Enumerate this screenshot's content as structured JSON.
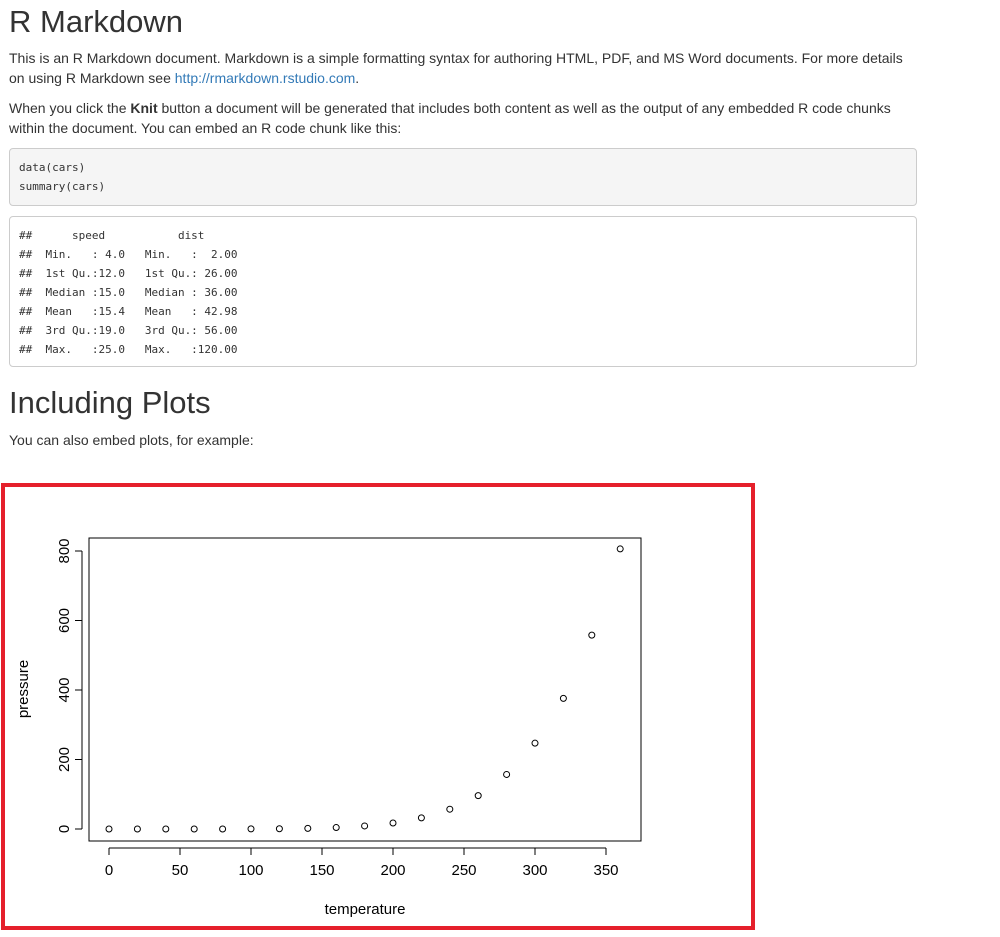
{
  "title": "R Markdown",
  "intro": {
    "text_before_link": "This is an R Markdown document. Markdown is a simple formatting syntax for authoring HTML, PDF, and MS Word documents. For more details on using R Markdown see ",
    "link_text": "http://rmarkdown.rstudio.com",
    "text_after_link": "."
  },
  "knit_para": {
    "text_before": "When you click the ",
    "bold": "Knit",
    "text_after": " button a document will be generated that includes both content as well as the output of any embedded R code chunks within the document. You can embed an R code chunk like this:"
  },
  "code_chunk": [
    "data(cars)",
    "summary(cars)"
  ],
  "code_output": [
    "##      speed           dist    ",
    "##  Min.   : 4.0   Min.   :  2.00  ",
    "##  1st Qu.:12.0   1st Qu.: 26.00  ",
    "##  Median :15.0   Median : 36.00  ",
    "##  Mean   :15.4   Mean   : 42.98  ",
    "##  3rd Qu.:19.0   3rd Qu.: 56.00  ",
    "##  Max.   :25.0   Max.   :120.00  "
  ],
  "section_title": "Including Plots",
  "plots_para": "You can also embed plots, for example:",
  "chart_data": {
    "type": "scatter",
    "title": "",
    "xlabel": "temperature",
    "ylabel": "pressure",
    "xlim": [
      0,
      360
    ],
    "ylim": [
      0,
      806
    ],
    "x_ticks": [
      0,
      50,
      100,
      150,
      200,
      250,
      300,
      350
    ],
    "y_ticks": [
      0,
      200,
      400,
      600,
      800
    ],
    "x": [
      0,
      20,
      40,
      60,
      80,
      100,
      120,
      140,
      160,
      180,
      200,
      220,
      240,
      260,
      280,
      300,
      320,
      340,
      360
    ],
    "y": [
      0.0002,
      0.0012,
      0.006,
      0.03,
      0.09,
      0.27,
      0.75,
      1.85,
      4.2,
      8.8,
      17.3,
      32.1,
      57.0,
      96.0,
      157.0,
      247.0,
      376.0,
      558.0,
      806.0
    ],
    "marker": "open-circle",
    "grid": false
  }
}
